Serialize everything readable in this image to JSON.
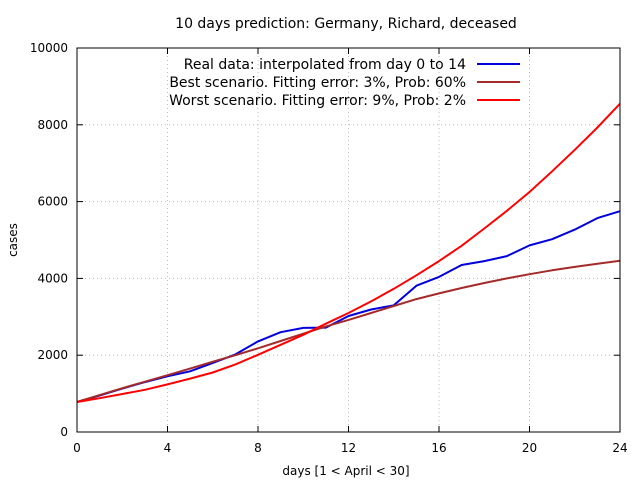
{
  "chart_data": {
    "type": "line",
    "title": "10 days prediction: Germany, Richard, deceased",
    "xlabel": "days [1 < April < 30]",
    "ylabel": "cases",
    "xlim": [
      0,
      24
    ],
    "ylim": [
      0,
      10000
    ],
    "xticks": [
      0,
      4,
      8,
      12,
      16,
      20,
      24
    ],
    "yticks": [
      0,
      2000,
      4000,
      6000,
      8000,
      10000
    ],
    "grid": true,
    "legend_position": "top-left",
    "series": [
      {
        "name": "Real data: interpolated from day 0 to 14",
        "color": "#0000dd",
        "x": [
          0,
          1,
          2,
          3,
          4,
          5,
          6,
          7,
          8,
          9,
          10,
          11,
          12,
          13,
          14,
          15,
          16,
          17,
          18,
          19,
          20,
          21,
          22,
          23,
          24
        ],
        "y": [
          780,
          950,
          1130,
          1300,
          1450,
          1580,
          1800,
          2020,
          2360,
          2600,
          2710,
          2720,
          3020,
          3190,
          3300,
          3810,
          4040,
          4350,
          4450,
          4580,
          4860,
          5020,
          5270,
          5570,
          5750
        ]
      },
      {
        "name": "Best scenario. Fitting error: 3%, Prob: 60%",
        "color": "#a52a2a",
        "x": [
          0,
          1,
          2,
          3,
          4,
          5,
          6,
          7,
          8,
          9,
          10,
          11,
          12,
          13,
          14,
          15,
          16,
          17,
          18,
          19,
          20,
          21,
          22,
          23,
          24
        ],
        "y": [
          780,
          960,
          1140,
          1310,
          1480,
          1650,
          1830,
          2000,
          2180,
          2370,
          2560,
          2750,
          2920,
          3100,
          3280,
          3460,
          3610,
          3750,
          3880,
          4000,
          4110,
          4210,
          4300,
          4380,
          4460
        ]
      },
      {
        "name": "Worst scenario. Fitting error: 9%, Prob: 2%",
        "color": "#ff0000",
        "x": [
          0,
          1,
          2,
          3,
          4,
          5,
          6,
          7,
          8,
          9,
          10,
          11,
          12,
          13,
          14,
          15,
          16,
          17,
          18,
          19,
          20,
          21,
          22,
          23,
          24
        ],
        "y": [
          780,
          880,
          990,
          1100,
          1240,
          1390,
          1550,
          1760,
          2010,
          2270,
          2530,
          2820,
          3100,
          3400,
          3730,
          4080,
          4450,
          4850,
          5300,
          5760,
          6250,
          6790,
          7350,
          7930,
          8550
        ]
      }
    ]
  }
}
